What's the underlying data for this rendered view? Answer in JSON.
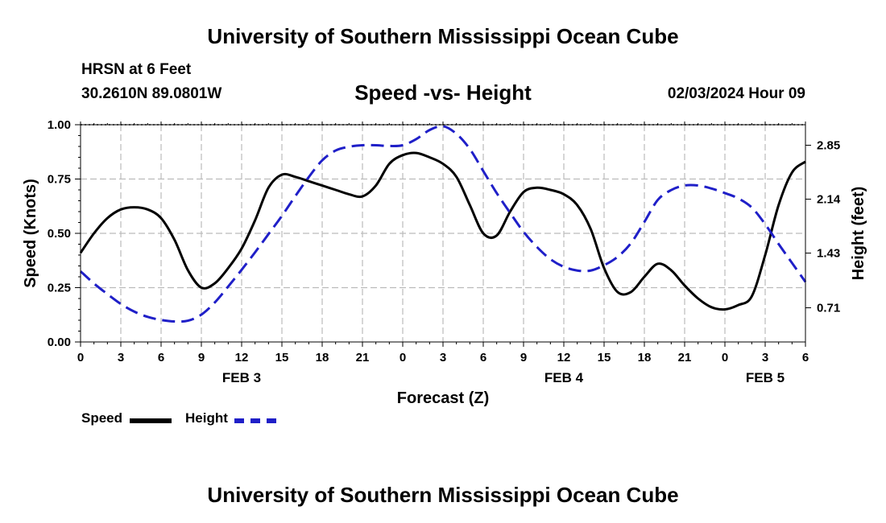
{
  "header": {
    "title": "University of Southern Mississippi Ocean Cube",
    "station": "HRSN at 6 Feet",
    "coords": "30.2610N  89.0801W",
    "subtitle": "Speed -vs- Height",
    "datetime": "02/03/2024 Hour 09"
  },
  "footer": {
    "title": "University of Southern Mississippi Ocean Cube"
  },
  "legend": {
    "speed_label": "Speed",
    "height_label": "Height"
  },
  "colors": {
    "speed": "#000000",
    "height": "#1f1fc8",
    "grid": "#bbbbbb"
  },
  "chart_data": {
    "type": "line",
    "title": "Speed -vs- Height",
    "xlabel": "Forecast (Z)",
    "ylabel": "Speed (Knots)",
    "y2label": "Height (feet)",
    "xlim": [
      0,
      54
    ],
    "ylim": [
      0,
      1.0
    ],
    "y2lim": [
      0.26,
      3.12
    ],
    "x_ticks": [
      0,
      3,
      6,
      9,
      12,
      15,
      18,
      21,
      24,
      27,
      30,
      33,
      36,
      39,
      42,
      45,
      48,
      51,
      54
    ],
    "x_tick_labels": [
      "0",
      "3",
      "6",
      "9",
      "12",
      "15",
      "18",
      "21",
      "0",
      "3",
      "6",
      "9",
      "12",
      "15",
      "18",
      "21",
      "0",
      "3",
      "6"
    ],
    "day_labels": [
      {
        "x": 12,
        "label": "FEB 3"
      },
      {
        "x": 36,
        "label": "FEB 4"
      },
      {
        "x": 51,
        "label": "FEB 5"
      }
    ],
    "y_ticks": [
      0.0,
      0.25,
      0.5,
      0.75,
      1.0
    ],
    "y_tick_labels": [
      "0.00",
      "0.25",
      "0.50",
      "0.75",
      "1.00"
    ],
    "y2_ticks": [
      0.71,
      1.43,
      2.14,
      2.85
    ],
    "y2_tick_labels": [
      "0.71",
      "1.43",
      "2.14",
      "2.85"
    ],
    "grid": true,
    "series": [
      {
        "name": "Speed",
        "axis": "left",
        "style": "solid",
        "x": [
          0,
          1,
          2,
          3,
          4,
          5,
          6,
          7,
          8,
          9,
          10,
          11,
          12,
          13,
          14,
          15,
          16,
          17,
          18,
          19,
          20,
          21,
          22,
          23,
          24,
          25,
          26,
          27,
          28,
          29,
          30,
          31,
          32,
          33,
          34,
          35,
          36,
          37,
          38,
          39,
          40,
          41,
          42,
          43,
          44,
          45,
          46,
          47,
          48,
          49,
          50,
          51,
          52,
          53,
          54
        ],
        "values": [
          0.41,
          0.5,
          0.57,
          0.61,
          0.62,
          0.61,
          0.57,
          0.47,
          0.33,
          0.25,
          0.27,
          0.34,
          0.43,
          0.56,
          0.71,
          0.77,
          0.76,
          0.74,
          0.72,
          0.7,
          0.68,
          0.67,
          0.72,
          0.82,
          0.86,
          0.87,
          0.85,
          0.82,
          0.76,
          0.63,
          0.5,
          0.49,
          0.6,
          0.69,
          0.71,
          0.7,
          0.68,
          0.63,
          0.52,
          0.34,
          0.23,
          0.23,
          0.3,
          0.36,
          0.33,
          0.26,
          0.2,
          0.16,
          0.15,
          0.17,
          0.21,
          0.4,
          0.63,
          0.78,
          0.83
        ]
      },
      {
        "name": "Height",
        "axis": "right",
        "style": "dashed",
        "x": [
          0,
          1,
          2,
          3,
          4,
          5,
          6,
          7,
          8,
          9,
          10,
          11,
          12,
          13,
          14,
          15,
          16,
          17,
          18,
          19,
          20,
          21,
          22,
          23,
          24,
          25,
          26,
          27,
          28,
          29,
          30,
          31,
          32,
          33,
          34,
          35,
          36,
          37,
          38,
          39,
          40,
          41,
          42,
          43,
          44,
          45,
          46,
          47,
          48,
          49,
          50,
          51,
          52,
          53,
          54
        ],
        "values": [
          1.19,
          1.03,
          0.89,
          0.76,
          0.66,
          0.59,
          0.55,
          0.53,
          0.54,
          0.62,
          0.78,
          0.99,
          1.21,
          1.44,
          1.68,
          1.92,
          2.18,
          2.43,
          2.65,
          2.78,
          2.83,
          2.85,
          2.85,
          2.84,
          2.85,
          2.93,
          3.05,
          3.1,
          3.0,
          2.8,
          2.51,
          2.22,
          1.96,
          1.71,
          1.51,
          1.35,
          1.25,
          1.2,
          1.2,
          1.27,
          1.38,
          1.56,
          1.84,
          2.13,
          2.26,
          2.32,
          2.32,
          2.28,
          2.22,
          2.15,
          2.03,
          1.81,
          1.55,
          1.3,
          1.05
        ]
      }
    ]
  }
}
